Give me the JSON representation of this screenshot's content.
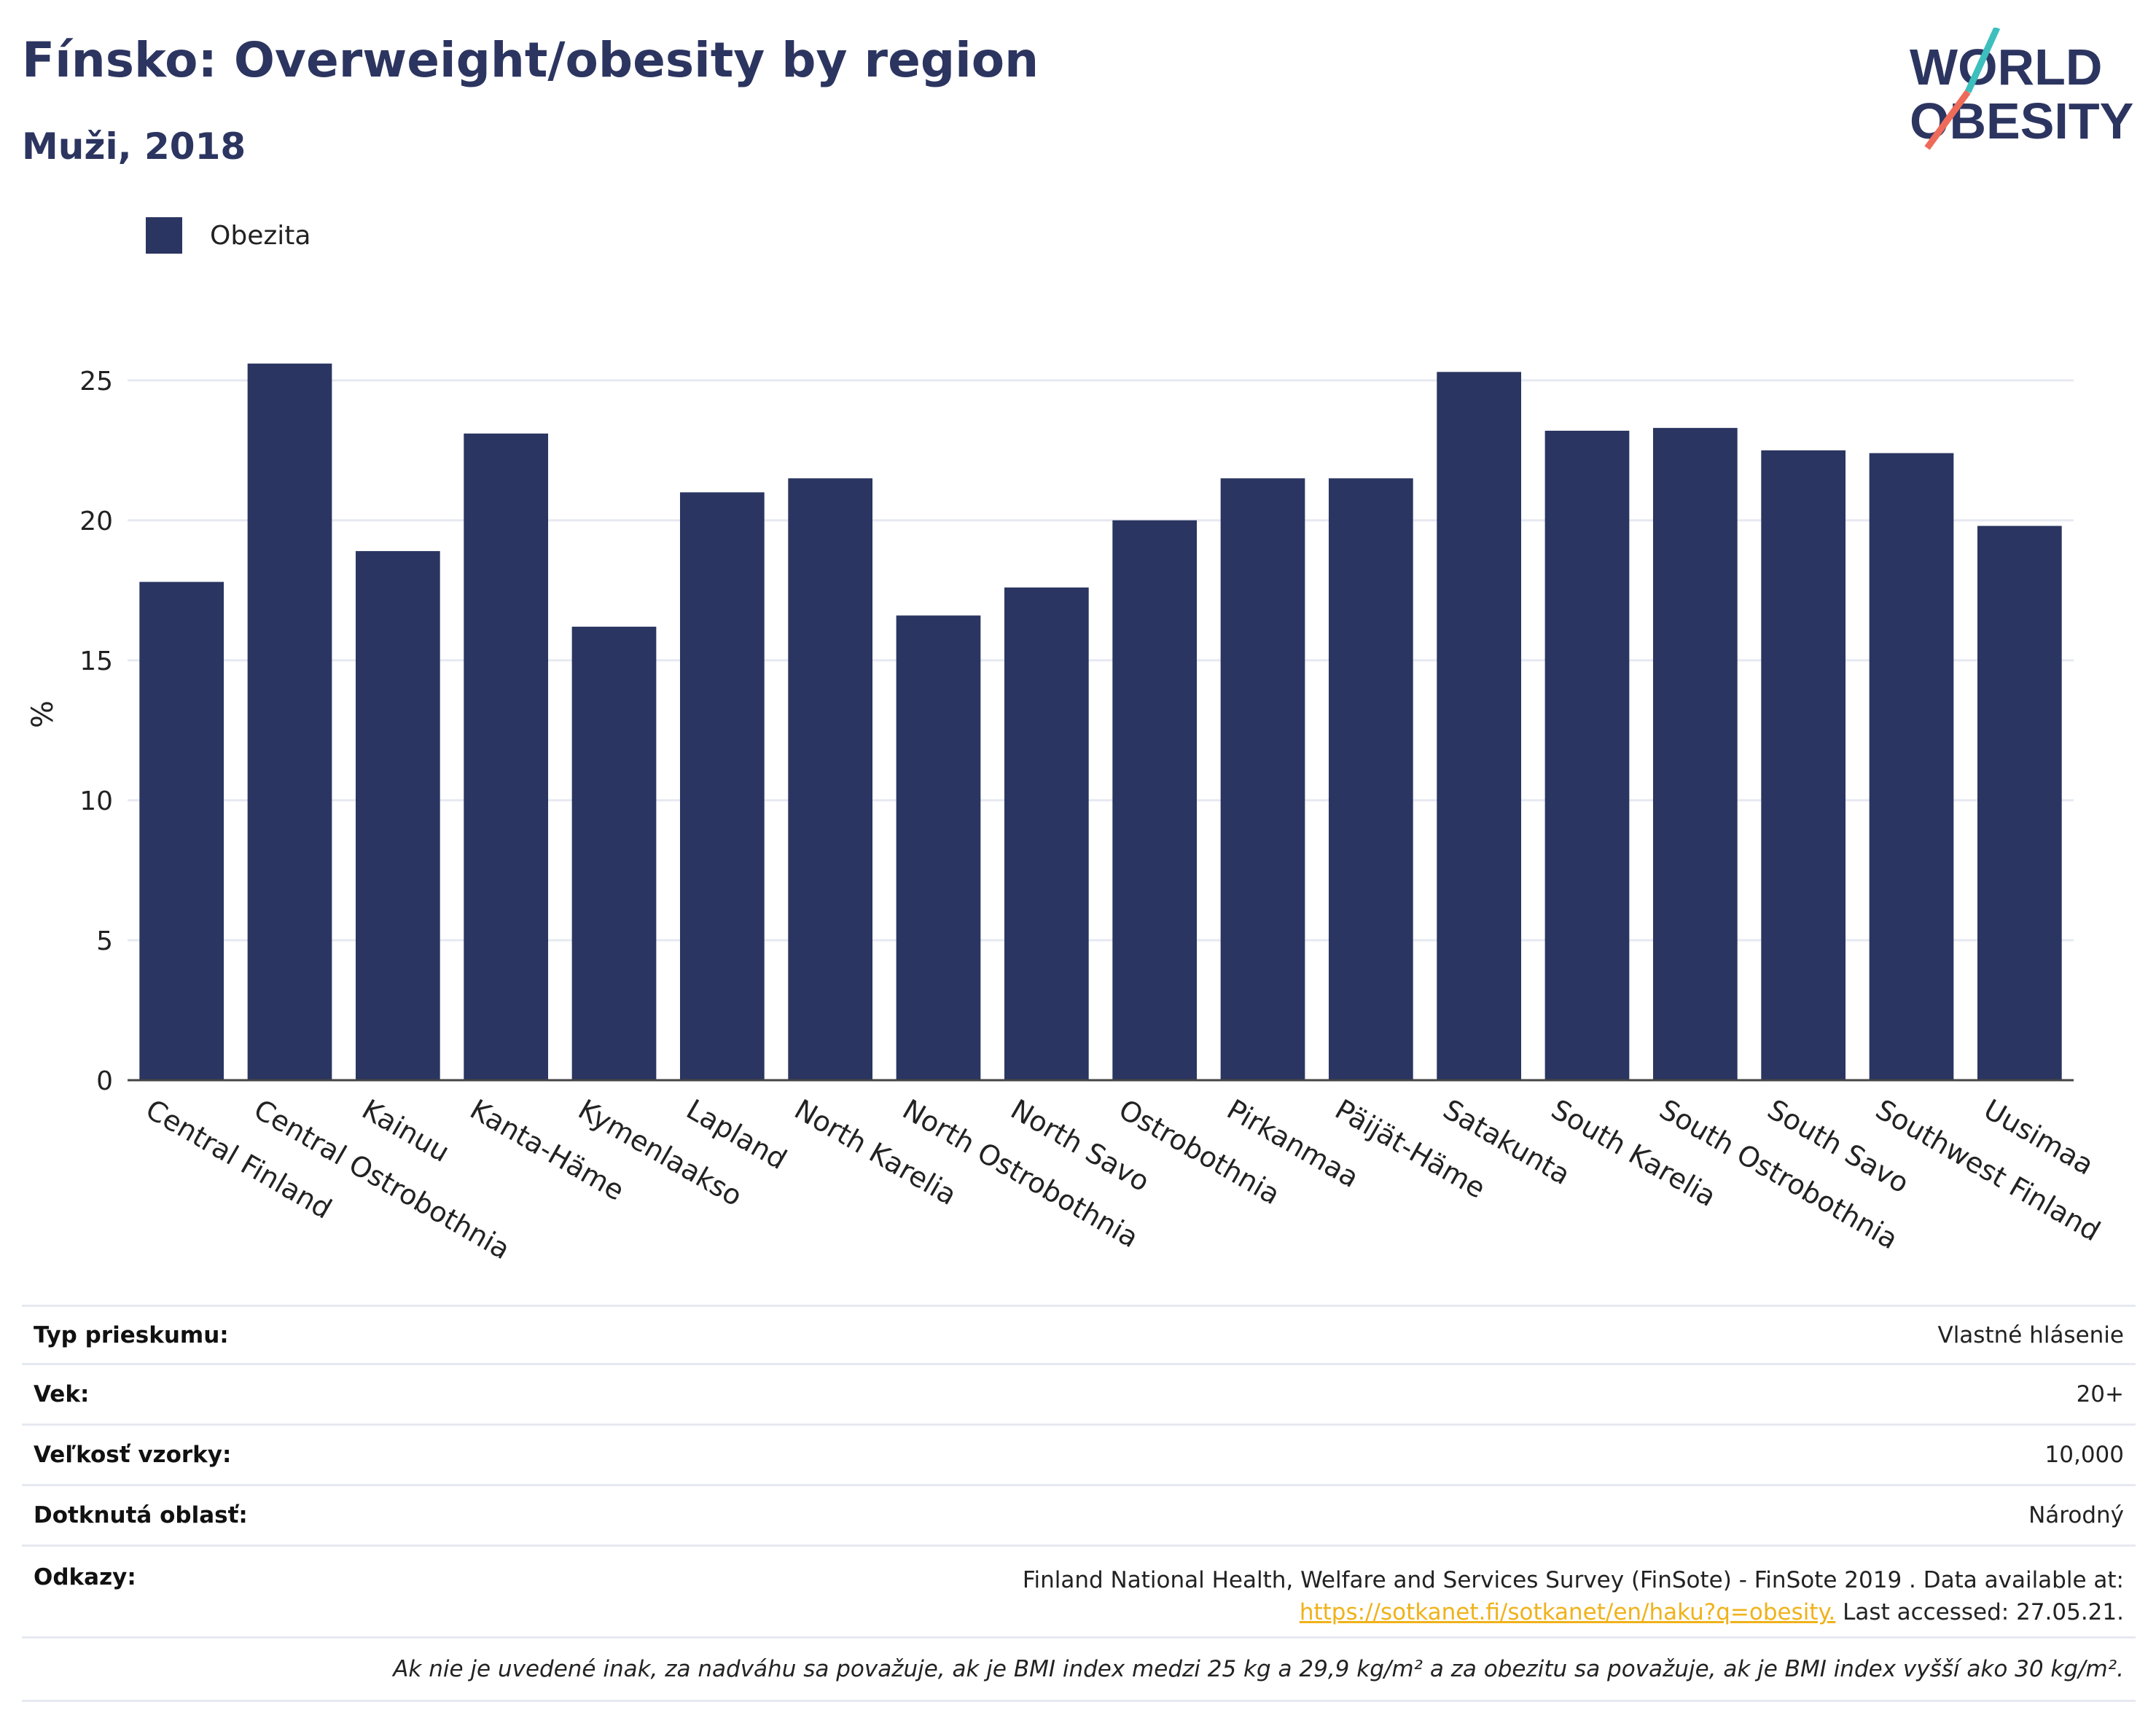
{
  "header": {
    "title": "Fínsko: Overweight/obesity by region",
    "subtitle": "Muži, 2018"
  },
  "logo": {
    "line1": "WORLD",
    "line2": "OBESITY"
  },
  "colors": {
    "bar": "#2a3561",
    "title": "#2c3560",
    "link": "#f0b21b",
    "logo_teal": "#3cbfbd",
    "logo_coral": "#ee6b5a"
  },
  "chart_data": {
    "type": "bar",
    "ylabel": "%",
    "xlabel": "",
    "ylim": [
      0,
      27
    ],
    "yticks": [
      0,
      5,
      10,
      15,
      20,
      25
    ],
    "grid": true,
    "legend_position": "top-left",
    "categories": [
      "Central Finland",
      "Central Ostrobothnia",
      "Kainuu",
      "Kanta-Häme",
      "Kymenlaakso",
      "Lapland",
      "North Karelia",
      "North Ostrobothnia",
      "North Savo",
      "Ostrobothnia",
      "Pirkanmaa",
      "Päijät-Häme",
      "Satakunta",
      "South Karelia",
      "South Ostrobothnia",
      "South Savo",
      "Southwest Finland",
      "Uusimaa"
    ],
    "series": [
      {
        "name": "Obezita",
        "color": "#2a3561",
        "values": [
          17.8,
          25.6,
          18.9,
          23.1,
          16.2,
          21.0,
          21.5,
          16.6,
          17.6,
          20.0,
          21.5,
          21.5,
          25.3,
          23.2,
          23.3,
          22.5,
          22.4,
          19.8
        ]
      }
    ]
  },
  "info": {
    "survey_type_label": "Typ prieskumu:",
    "survey_type_value": "Vlastné hlásenie",
    "age_label": "Vek:",
    "age_value": "20+",
    "sample_label": "Veľkosť vzorky:",
    "sample_value": "10,000",
    "area_label": "Dotknutá oblasť:",
    "area_value": "Národný",
    "refs_label": "Odkazy:",
    "refs_line1": "Finland National Health, Welfare and Services Survey (FinSote) - FinSote 2019 . Data available at:",
    "refs_link": "https://sotkanet.fi/sotkanet/en/haku?q=obesity.",
    "refs_tail": " Last accessed: 27.05.21.",
    "footnote": "Ak nie je uvedené inak, za nadváhu sa považuje, ak je BMI index medzi 25 kg a 29,9 kg/m² a za obezitu sa považuje, ak je BMI index vyšší ako 30 kg/m²."
  }
}
